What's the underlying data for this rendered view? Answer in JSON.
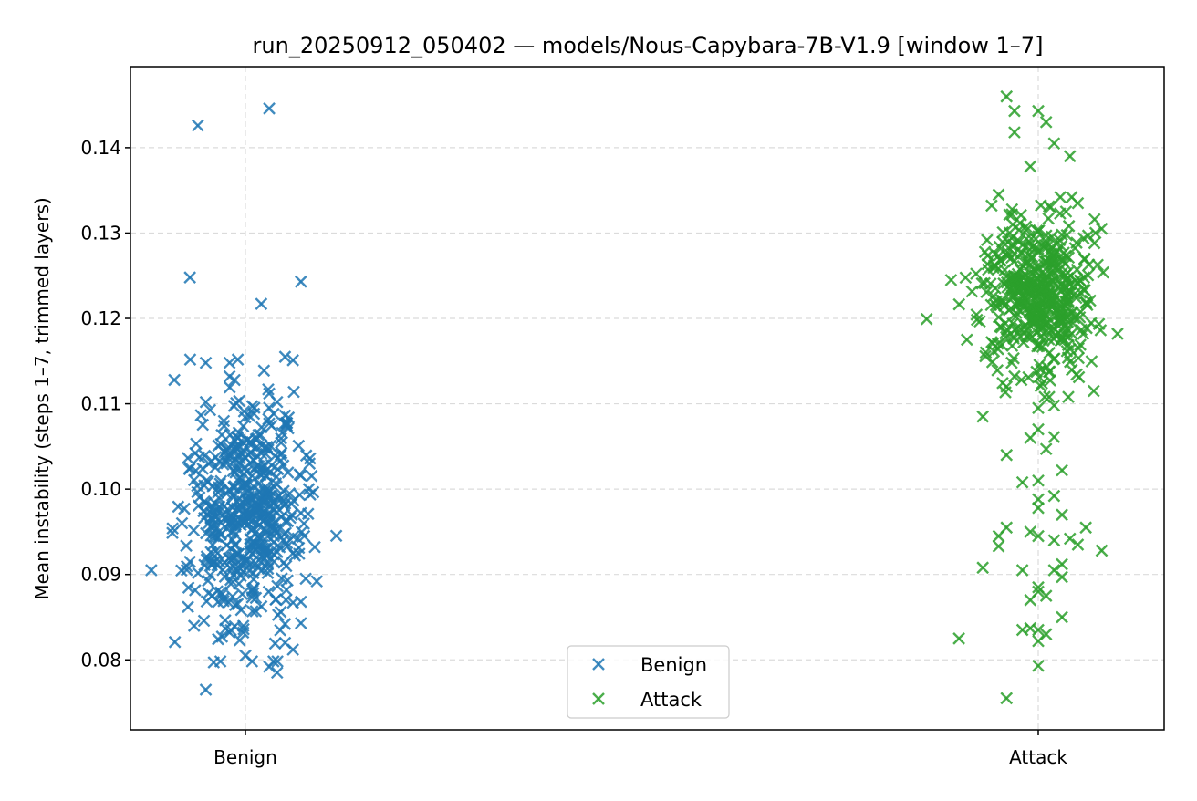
{
  "chart_data": {
    "type": "scatter",
    "title": "run_20250912_050402 — models/Nous-Capybara-7B-V1.9  [window 1–7]",
    "xlabel": "",
    "ylabel": "Mean instability (steps 1–7, trimmed layers)",
    "categories": [
      "Benign",
      "Attack"
    ],
    "ylim": [
      0.0718,
      0.1495
    ],
    "yticks": [
      0.08,
      0.09,
      0.1,
      0.11,
      0.12,
      0.13,
      0.14
    ],
    "ytick_labels": [
      "0.08",
      "0.09",
      "0.10",
      "0.11",
      "0.12",
      "0.13",
      "0.14"
    ],
    "grid": true,
    "legend_position": "lower center",
    "series": [
      {
        "name": "Benign",
        "color": "#1f77b4",
        "marker": "x",
        "category": "Benign",
        "points": [
          [
            -0.06,
            0.1426
          ],
          [
            0.03,
            0.1446
          ],
          [
            -0.07,
            0.1248
          ],
          [
            0.02,
            0.1217
          ],
          [
            0.07,
            0.1243
          ],
          [
            0.05,
            0.1155
          ],
          [
            0.06,
            0.1151
          ],
          [
            -0.05,
            0.1148
          ],
          [
            -0.02,
            0.1148
          ],
          [
            -0.02,
            0.1132
          ],
          [
            0.03,
            0.1112
          ],
          [
            -0.05,
            0.1102
          ],
          [
            0.04,
            0.1102
          ],
          [
            -0.07,
            0.1025
          ],
          [
            0.07,
            0.1016
          ],
          [
            0.08,
            0.1
          ],
          [
            -0.08,
            0.096
          ],
          [
            0.07,
            0.0972
          ],
          [
            -0.07,
            0.0915
          ],
          [
            0.09,
            0.0892
          ],
          [
            0.06,
            0.0925
          ],
          [
            0.07,
            0.0868
          ],
          [
            0.06,
            0.0867
          ],
          [
            0.07,
            0.0843
          ],
          [
            0.05,
            0.0842
          ],
          [
            0.06,
            0.0812
          ],
          [
            -0.05,
            0.0765
          ],
          [
            0.05,
            0.082
          ],
          [
            0.04,
            0.0785
          ],
          [
            0.03,
            0.0792
          ],
          [
            -0.04,
            0.0797
          ],
          [
            0.0,
            0.0805
          ],
          [
            -0.02,
            0.0832
          ],
          [
            0.01,
            0.0878
          ]
        ],
        "cluster": {
          "n": 520,
          "x_center": 0.0,
          "x_spread": 0.035,
          "y_mean": 0.0975,
          "y_sd": 0.0068
        }
      },
      {
        "name": "Attack",
        "color": "#2ca02c",
        "marker": "x",
        "category": "Attack",
        "points": [
          [
            -0.04,
            0.146
          ],
          [
            -0.03,
            0.1443
          ],
          [
            0.0,
            0.1443
          ],
          [
            0.01,
            0.143
          ],
          [
            0.02,
            0.1405
          ],
          [
            -0.03,
            0.1418
          ],
          [
            0.04,
            0.139
          ],
          [
            -0.01,
            0.1378
          ],
          [
            0.08,
            0.1305
          ],
          [
            -0.11,
            0.1245
          ],
          [
            -0.09,
            0.1175
          ],
          [
            0.1,
            0.1182
          ],
          [
            -0.05,
            0.1345
          ],
          [
            0.05,
            0.1335
          ],
          [
            0.07,
            0.1115
          ],
          [
            -0.04,
            0.112
          ],
          [
            -0.03,
            0.1132
          ],
          [
            0.0,
            0.1095
          ],
          [
            0.02,
            0.1098
          ],
          [
            0.0,
            0.107
          ],
          [
            -0.07,
            0.1085
          ],
          [
            -0.04,
            0.104
          ],
          [
            0.01,
            0.1047
          ],
          [
            0.02,
            0.1061
          ],
          [
            -0.01,
            0.106
          ],
          [
            0.0,
            0.101
          ],
          [
            -0.02,
            0.1008
          ],
          [
            0.03,
            0.1022
          ],
          [
            0.0,
            0.0988
          ],
          [
            0.0,
            0.0978
          ],
          [
            0.02,
            0.0992
          ],
          [
            0.03,
            0.097
          ],
          [
            -0.04,
            0.0955
          ],
          [
            -0.05,
            0.0945
          ],
          [
            -0.01,
            0.095
          ],
          [
            0.0,
            0.0945
          ],
          [
            0.02,
            0.094
          ],
          [
            0.04,
            0.0942
          ],
          [
            0.05,
            0.0935
          ],
          [
            0.06,
            0.0955
          ],
          [
            0.08,
            0.0928
          ],
          [
            -0.05,
            0.0933
          ],
          [
            -0.07,
            0.0908
          ],
          [
            -0.02,
            0.0905
          ],
          [
            0.02,
            0.0905
          ],
          [
            0.0,
            0.0885
          ],
          [
            0.01,
            0.0875
          ],
          [
            0.0,
            0.088
          ],
          [
            -0.01,
            0.087
          ],
          [
            0.03,
            0.0897
          ],
          [
            0.03,
            0.085
          ],
          [
            0.0,
            0.0835
          ],
          [
            -0.01,
            0.0837
          ],
          [
            -0.02,
            0.0835
          ],
          [
            0.0,
            0.0822
          ],
          [
            -0.1,
            0.0825
          ],
          [
            0.01,
            0.083
          ],
          [
            0.0,
            0.0793
          ],
          [
            -0.04,
            0.0755
          ],
          [
            0.03,
            0.0912
          ]
        ],
        "cluster": {
          "n": 480,
          "x_center": 0.0,
          "x_spread": 0.035,
          "y_mean": 0.1225,
          "y_sd": 0.0045
        }
      }
    ]
  }
}
